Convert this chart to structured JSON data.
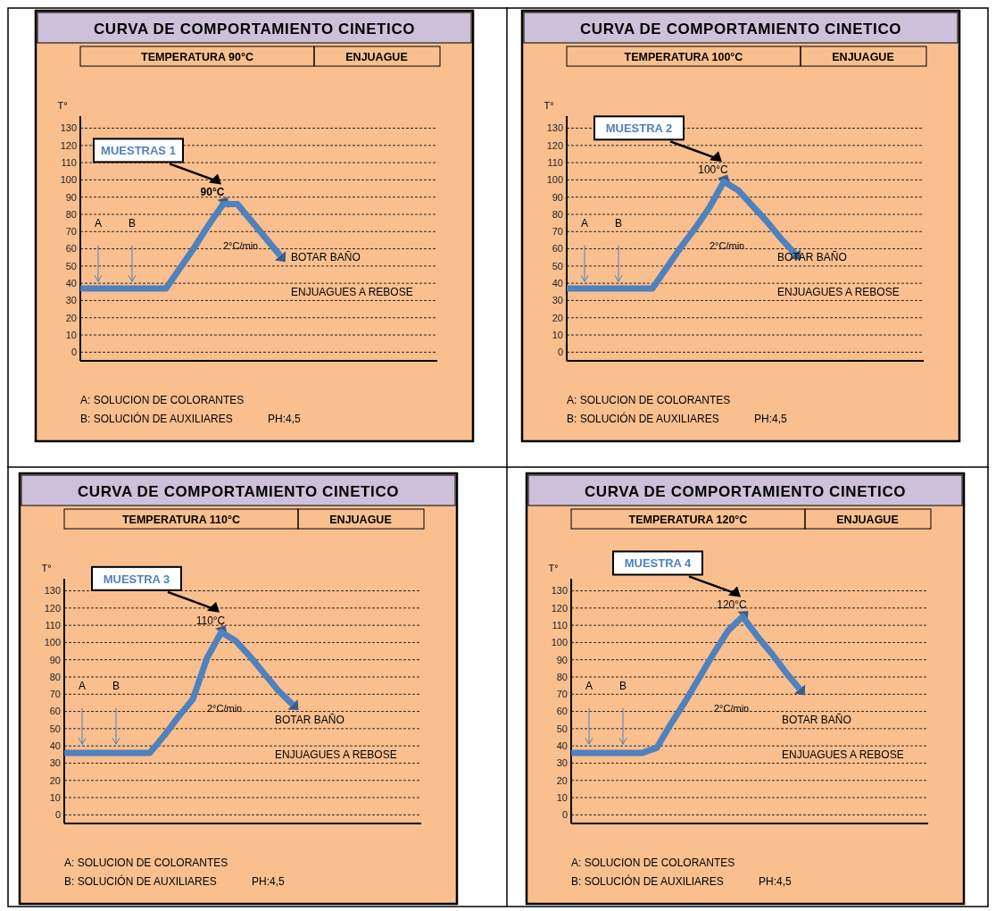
{
  "chart_data": [
    {
      "type": "line",
      "title": "CURVA DE COMPORTAMIENTO CINETICO",
      "subtitle": "TEMPERATURA 90°C",
      "ylabel": "T°",
      "annotations": [
        "ENJUAGUE",
        "MUESTRAS 1",
        "90°C",
        "A",
        "B",
        "2°C/min",
        "BOTAR BAÑO",
        "ENJUAGUES A REBOSE",
        "A: SOLUCION DE COLORANTES",
        "B: SOLUCIÓN DE AUXILIARES",
        "PH:4,5"
      ],
      "categories": [
        null,
        null,
        null,
        null,
        null,
        null,
        null,
        null,
        null,
        null,
        null,
        null,
        null,
        null,
        null,
        null,
        null,
        null,
        null,
        null,
        null,
        null,
        null,
        null,
        null,
        null
      ],
      "ylim": [
        -5,
        137
      ],
      "yticks": [
        0,
        10,
        20,
        30,
        40,
        50,
        60,
        70,
        80,
        90,
        100,
        110,
        120,
        130
      ],
      "grid": "y",
      "tick_labels": "y",
      "series": [
        {
          "color": "#4f81bd",
          "values": [
            37,
            37,
            37,
            37,
            37,
            37,
            37,
            49,
            61,
            74,
            86,
            86,
            76,
            66,
            56,
            null,
            null,
            null,
            null,
            null,
            null,
            null,
            null,
            null,
            null,
            null
          ]
        }
      ]
    },
    {
      "type": "line",
      "title": "CURVA DE COMPORTAMIENTO CINETICO",
      "subtitle": "TEMPERATURA 100°C",
      "ylabel": "T°",
      "annotations": [
        "ENJUAGUE",
        "MUESTRA 2",
        "100°C",
        "A",
        "B",
        "2°C/min",
        "BOTAR BAÑO",
        "ENJUAGUES A REBOSE",
        "A: SOLUCION DE COLORANTES",
        "B: SOLUCIÓN DE AUXILIARES",
        "PH:4,5"
      ],
      "categories": [
        null,
        null,
        null,
        null,
        null,
        null,
        null,
        null,
        null,
        null,
        null,
        null,
        null,
        null,
        null,
        null,
        null,
        null,
        null,
        null,
        null,
        null,
        null,
        null,
        null,
        null
      ],
      "ylim": [
        -5,
        137
      ],
      "yticks": [
        0,
        10,
        20,
        30,
        40,
        50,
        60,
        70,
        80,
        90,
        100,
        110,
        120,
        130
      ],
      "grid": "y",
      "tick_labels": "y",
      "series": [
        {
          "color": "#4f81bd",
          "values": [
            37,
            37,
            37,
            37,
            37,
            37,
            37,
            49,
            61,
            72,
            84,
            99,
            94,
            85,
            76,
            66,
            57,
            null,
            null,
            null,
            null,
            null,
            null,
            null,
            null,
            null
          ]
        }
      ]
    },
    {
      "type": "line",
      "title": "CURVA DE COMPORTAMIENTO CINETICO",
      "subtitle": "TEMPERATURA 110°C",
      "ylabel": "T°",
      "annotations": [
        "ENJUAGUE",
        "MUESTRA 3",
        "110°C",
        "A",
        "B",
        "2°C/min",
        "BOTAR BAÑO",
        "ENJUAGUES A REBOSE",
        "A: SOLUCION DE COLORANTES",
        "B: SOLUCIÓN DE AUXILIARES",
        "PH:4,5"
      ],
      "categories": [
        null,
        null,
        null,
        null,
        null,
        null,
        null,
        null,
        null,
        null,
        null,
        null,
        null,
        null,
        null,
        null,
        null,
        null,
        null,
        null,
        null,
        null,
        null,
        null,
        null,
        null
      ],
      "ylim": [
        -5,
        137
      ],
      "yticks": [
        0,
        10,
        20,
        30,
        40,
        50,
        60,
        70,
        80,
        90,
        100,
        110,
        120,
        130
      ],
      "grid": "y",
      "tick_labels": "y",
      "series": [
        {
          "color": "#4f81bd",
          "values": [
            36,
            36,
            36,
            36,
            36,
            36,
            36,
            46,
            57,
            67,
            91,
            106,
            101,
            92,
            82,
            72,
            64,
            null,
            null,
            null,
            null,
            null,
            null,
            null,
            null,
            null
          ]
        }
      ]
    },
    {
      "type": "line",
      "title": "CURVA DE COMPORTAMIENTO CINETICO",
      "subtitle": "TEMPERATURA 120°C",
      "ylabel": "T°",
      "annotations": [
        "ENJUAGUE",
        "MUESTRA 4",
        "120°C",
        "A",
        "B",
        "2°C/min",
        "BOTAR BAÑO",
        "ENJUAGUES A REBOSE",
        "A: SOLUCION DE COLORANTES",
        "B: SOLUCIÓN DE AUXILIARES",
        "PH:4,5"
      ],
      "categories": [
        null,
        null,
        null,
        null,
        null,
        null,
        null,
        null,
        null,
        null,
        null,
        null,
        null,
        null,
        null,
        null,
        null,
        null,
        null,
        null,
        null,
        null,
        null,
        null,
        null,
        null
      ],
      "ylim": [
        -5,
        137
      ],
      "yticks": [
        0,
        10,
        20,
        30,
        40,
        50,
        60,
        70,
        80,
        90,
        100,
        110,
        120,
        130
      ],
      "grid": "y",
      "tick_labels": "y",
      "series": [
        {
          "color": "#4f81bd",
          "values": [
            36,
            36,
            36,
            36,
            36,
            36,
            39,
            53,
            66,
            80,
            94,
            107,
            115,
            104,
            94,
            83,
            73,
            null,
            null,
            null,
            null,
            null,
            null,
            null,
            null,
            null
          ]
        }
      ]
    }
  ]
}
